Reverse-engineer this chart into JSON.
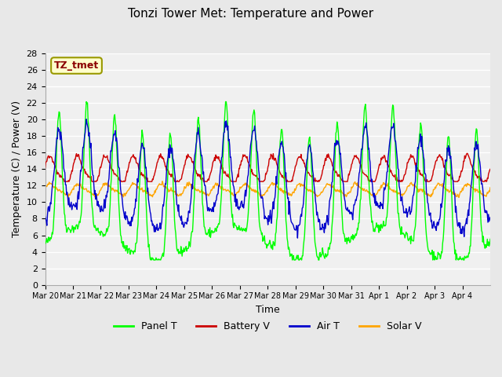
{
  "title": "Tonzi Tower Met: Temperature and Power",
  "xlabel": "Time",
  "ylabel": "Temperature (C) / Power (V)",
  "watermark": "TZ_tmet",
  "ylim": [
    0,
    28
  ],
  "yticks": [
    0,
    2,
    4,
    6,
    8,
    10,
    12,
    14,
    16,
    18,
    20,
    22,
    24,
    26,
    28
  ],
  "xtick_labels": [
    "Mar 20",
    "Mar 21",
    "Mar 22",
    "Mar 23",
    "Mar 24",
    "Mar 25",
    "Mar 26",
    "Mar 27",
    "Mar 28",
    "Mar 29",
    "Mar 30",
    "Mar 31",
    "Apr 1",
    "Apr 2",
    "Apr 3",
    "Apr 4"
  ],
  "colors": {
    "panel_t": "#00FF00",
    "battery_v": "#CC0000",
    "air_t": "#0000CC",
    "solar_v": "#FFA500"
  },
  "legend": [
    "Panel T",
    "Battery V",
    "Air T",
    "Solar V"
  ],
  "bg_color": "#E8E8E8",
  "plot_bg": "#F0F0F0",
  "grid_color": "#FFFFFF",
  "watermark_bg": "#FFFFCC",
  "watermark_fg": "#8B0000"
}
